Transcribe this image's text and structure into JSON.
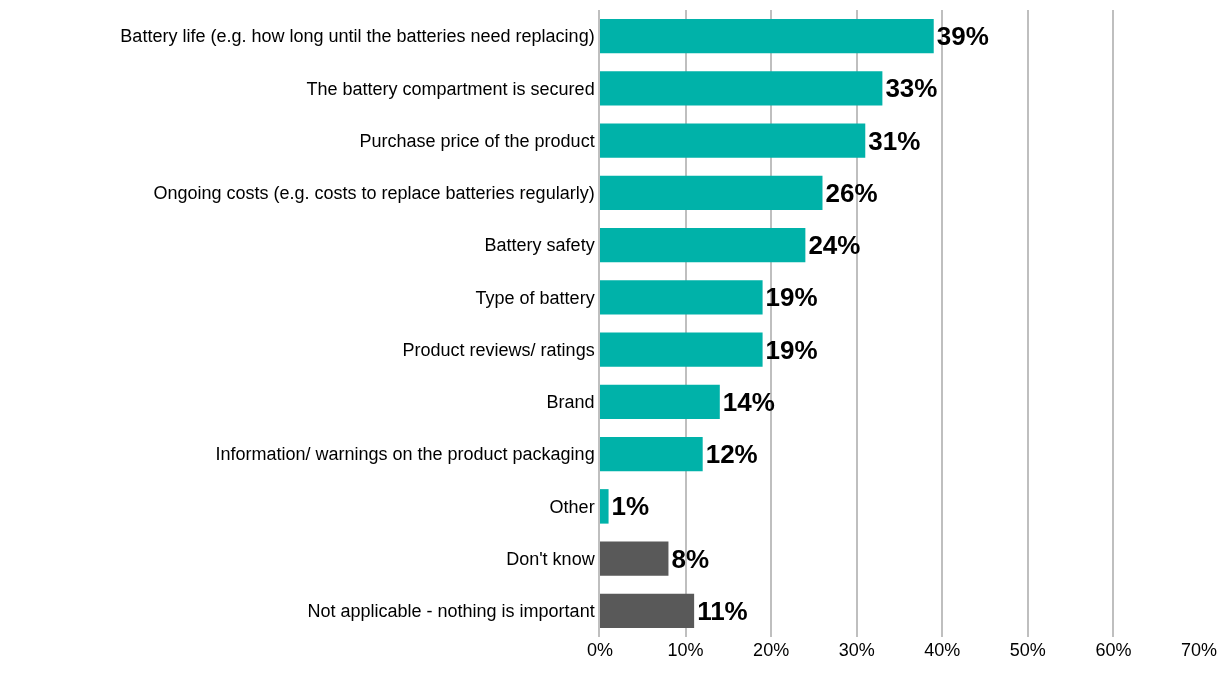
{
  "chart_data": {
    "type": "bar",
    "orientation": "horizontal",
    "categories": [
      "Battery life (e.g. how long until the batteries need replacing)",
      "The battery compartment is secured",
      "Purchase price of the product",
      "Ongoing costs (e.g. costs to replace batteries regularly)",
      "Battery safety",
      "Type of battery",
      "Product reviews/ ratings",
      "Brand",
      "Information/ warnings on the product packaging",
      "Other",
      "Don't know",
      "Not applicable - nothing is important"
    ],
    "values": [
      39,
      33,
      31,
      26,
      24,
      19,
      19,
      14,
      12,
      1,
      8,
      11
    ],
    "value_labels": [
      "39%",
      "33%",
      "31%",
      "26%",
      "24%",
      "19%",
      "19%",
      "14%",
      "12%",
      "1%",
      "8%",
      "11%"
    ],
    "colors": [
      "#00b2a9",
      "#00b2a9",
      "#00b2a9",
      "#00b2a9",
      "#00b2a9",
      "#00b2a9",
      "#00b2a9",
      "#00b2a9",
      "#00b2a9",
      "#00b2a9",
      "#595959",
      "#595959"
    ],
    "xlim": [
      0,
      70
    ],
    "xticks": [
      {
        "value": 0,
        "label": "0%"
      },
      {
        "value": 10,
        "label": "10%"
      },
      {
        "value": 20,
        "label": "20%"
      },
      {
        "value": 30,
        "label": "30%"
      },
      {
        "value": 40,
        "label": "40%"
      },
      {
        "value": 50,
        "label": "50%"
      },
      {
        "value": 60,
        "label": "60%"
      },
      {
        "value": 70,
        "label": "70%"
      }
    ],
    "grid": "x"
  }
}
